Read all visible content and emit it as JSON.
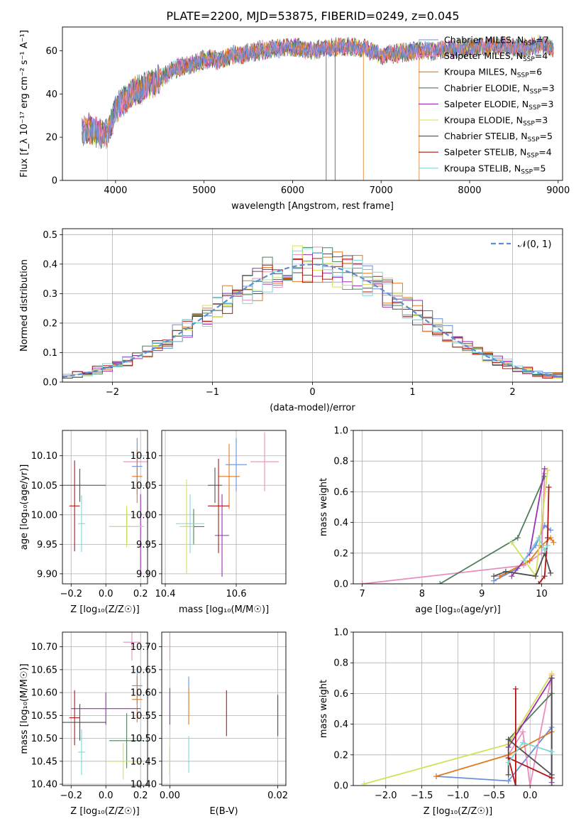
{
  "figure": {
    "title": "PLATE=2200, MJD=53875, FIBERID=0249, z=0.045"
  },
  "colors": {
    "Chabrier MILES": "#6a8fd8",
    "Salpeter MILES": "#e88fc0",
    "Kroupa MILES": "#e07a1f",
    "Chabrier ELODIE": "#4f7f5a",
    "Salpeter ELODIE": "#9b2fb5",
    "Kroupa ELODIE": "#d4e05a",
    "Chabrier STELIB": "#505050",
    "Salpeter STELIB": "#b01515",
    "Kroupa STELIB": "#7dd8d8",
    "normal": "#5b8fd6",
    "grid": "#b0b0b0"
  },
  "chart_data": [
    {
      "id": "spectrum",
      "type": "line",
      "xlabel": "wavelength [Angstrom, rest frame]",
      "ylabel": "Flux [f_λ 10⁻¹⁷ erg cm⁻² s⁻¹ A⁻¹]",
      "xlim": [
        3400,
        9050
      ],
      "ylim": [
        0,
        71
      ],
      "xticks": [
        4000,
        5000,
        6000,
        7000,
        8000,
        9000
      ],
      "yticks": [
        0,
        20,
        40,
        60
      ],
      "grid": false,
      "legend_position": "top-right",
      "continuum": {
        "x": [
          3620,
          3700,
          3800,
          3900,
          3950,
          4000,
          4100,
          4200,
          4300,
          4400,
          4500,
          4600,
          4700,
          4800,
          4900,
          5000,
          5100,
          5200,
          5300,
          5400,
          5500,
          5600,
          5800,
          6000,
          6200,
          6400,
          6600,
          6800,
          7000,
          7200,
          7400,
          7600,
          7800,
          8000,
          8200,
          8400,
          8600,
          8800,
          8950
        ],
        "y": [
          22,
          24,
          22,
          21,
          26,
          33,
          37,
          41,
          42,
          45,
          47,
          50,
          52,
          53,
          54,
          56,
          56,
          55,
          58,
          58,
          59,
          60,
          61,
          62,
          60,
          61,
          62,
          61,
          58,
          59,
          60,
          60,
          61,
          61,
          62,
          62,
          61,
          63,
          61
        ]
      },
      "noise_amplitude": 4,
      "drop_lines": [
        3910,
        6380,
        6480,
        6800,
        7430
      ],
      "series": [
        {
          "name": "Chabrier MILES",
          "n_ssp": "7"
        },
        {
          "name": "Salpeter MILES",
          "n_ssp": "4"
        },
        {
          "name": "Kroupa MILES",
          "n_ssp": "6"
        },
        {
          "name": "Chabrier ELODIE",
          "n_ssp": "3"
        },
        {
          "name": "Salpeter ELODIE",
          "n_ssp": "3"
        },
        {
          "name": "Kroupa ELODIE",
          "n_ssp": "3"
        },
        {
          "name": "Chabrier STELIB",
          "n_ssp": "5"
        },
        {
          "name": "Salpeter STELIB",
          "n_ssp": "4"
        },
        {
          "name": "Kroupa STELIB",
          "n_ssp": "5"
        }
      ]
    },
    {
      "id": "residuals",
      "type": "step-histogram",
      "xlabel": "(data-model)/error",
      "ylabel": "Normed distribution",
      "xlim": [
        -2.5,
        2.5
      ],
      "ylim": [
        0,
        0.52
      ],
      "xticks": [
        -2,
        -1,
        0,
        1,
        2
      ],
      "yticks": [
        0.0,
        0.1,
        0.2,
        0.3,
        0.4,
        0.5
      ],
      "grid": true,
      "legend": "𝒩(0, 1)",
      "legend_position": "top-right",
      "bin_edges": [
        -2.5,
        -2.4,
        -2.3,
        -2.2,
        -2.1,
        -2.0,
        -1.9,
        -1.8,
        -1.7,
        -1.6,
        -1.5,
        -1.4,
        -1.3,
        -1.2,
        -1.1,
        -1.0,
        -0.9,
        -0.8,
        -0.7,
        -0.6,
        -0.5,
        -0.4,
        -0.3,
        -0.2,
        -0.1,
        0.0,
        0.1,
        0.2,
        0.3,
        0.4,
        0.5,
        0.6,
        0.7,
        0.8,
        0.9,
        1.0,
        1.1,
        1.2,
        1.3,
        1.4,
        1.5,
        1.6,
        1.7,
        1.8,
        1.9,
        2.0,
        2.1,
        2.2,
        2.3,
        2.4,
        2.5
      ],
      "normal_pdf": {
        "mean": 0,
        "sigma": 1
      }
    },
    {
      "id": "age-vs-Z",
      "type": "errorbar",
      "xlabel": "Z [log₁₀(Z/Z☉)]",
      "ylabel": "age  [log₁₀(age/yr)]",
      "xlim": [
        -0.25,
        0.24
      ],
      "ylim": [
        9.883,
        10.143
      ],
      "xticks": [
        -0.2,
        0.0,
        0.2
      ],
      "yticks": [
        9.9,
        9.95,
        10.0,
        10.05,
        10.1
      ],
      "grid": true,
      "points": [
        {
          "series": "Chabrier MILES",
          "x": 0.18,
          "y": 10.082,
          "xerr": 0.03,
          "yerr": 0.048
        },
        {
          "series": "Salpeter MILES",
          "x": 0.17,
          "y": 10.09,
          "xerr": 0.07,
          "yerr": 0.0
        },
        {
          "series": "Kroupa MILES",
          "x": 0.18,
          "y": 10.065,
          "xerr": 0.03,
          "yerr": 0.045
        },
        {
          "series": "Chabrier ELODIE",
          "x": 0.12,
          "y": 9.98,
          "xerr": 0.1,
          "yerr": 0.028
        },
        {
          "series": "Salpeter ELODIE",
          "x": 0.2,
          "y": 9.965,
          "xerr": 0.0,
          "yerr": 0.07
        },
        {
          "series": "Kroupa ELODIE",
          "x": 0.12,
          "y": 9.98,
          "xerr": 0.1,
          "yerr": 0.035
        },
        {
          "series": "Chabrier STELIB",
          "x": -0.15,
          "y": 10.05,
          "xerr": 0.15,
          "yerr": 0.028
        },
        {
          "series": "Salpeter STELIB",
          "x": -0.18,
          "y": 10.015,
          "xerr": 0.03,
          "yerr": 0.077
        },
        {
          "series": "Kroupa STELIB",
          "x": -0.14,
          "y": 9.985,
          "xerr": 0.02,
          "yerr": 0.048
        }
      ]
    },
    {
      "id": "age-vs-mass",
      "type": "errorbar",
      "xlabel": "mass [log₁₀(M/M☉)]",
      "ylabel": "",
      "xlim": [
        10.39,
        10.74
      ],
      "ylim": [
        9.883,
        10.143
      ],
      "xticks": [
        10.4,
        10.6
      ],
      "yticks": [
        9.9,
        9.95,
        10.0,
        10.05,
        10.1
      ],
      "grid": true,
      "points": [
        {
          "series": "Chabrier MILES",
          "x": 10.6,
          "y": 10.085,
          "xerr": 0.03,
          "yerr": 0.045
        },
        {
          "series": "Salpeter MILES",
          "x": 10.68,
          "y": 10.09,
          "xerr": 0.04,
          "yerr": 0.05
        },
        {
          "series": "Kroupa MILES",
          "x": 10.58,
          "y": 10.065,
          "xerr": 0.03,
          "yerr": 0.055
        },
        {
          "series": "Chabrier ELODIE",
          "x": 10.48,
          "y": 9.98,
          "xerr": 0.03,
          "yerr": 0.03
        },
        {
          "series": "Salpeter ELODIE",
          "x": 10.56,
          "y": 9.965,
          "xerr": 0.02,
          "yerr": 0.07
        },
        {
          "series": "Kroupa ELODIE",
          "x": 10.46,
          "y": 9.98,
          "xerr": 0.02,
          "yerr": 0.08
        },
        {
          "series": "Chabrier STELIB",
          "x": 10.54,
          "y": 10.05,
          "xerr": 0.02,
          "yerr": 0.03
        },
        {
          "series": "Salpeter STELIB",
          "x": 10.55,
          "y": 10.015,
          "xerr": 0.03,
          "yerr": 0.08
        },
        {
          "series": "Kroupa STELIB",
          "x": 10.47,
          "y": 9.985,
          "xerr": 0.04,
          "yerr": 0.05
        }
      ]
    },
    {
      "id": "weight-vs-age",
      "type": "line",
      "xlabel": "age  [log₁₀(age/yr)]",
      "ylabel": "mass weight",
      "xlim": [
        6.85,
        10.35
      ],
      "ylim": [
        0,
        1
      ],
      "xticks": [
        7,
        8,
        9,
        10
      ],
      "yticks": [
        0.0,
        0.2,
        0.4,
        0.6,
        0.8,
        1.0
      ],
      "grid": true,
      "series": [
        {
          "name": "Chabrier MILES",
          "x": [
            9.2,
            9.6,
            9.9,
            10.05,
            10.15
          ],
          "y": [
            0.02,
            0.1,
            0.25,
            0.38,
            0.35
          ]
        },
        {
          "name": "Salpeter MILES",
          "x": [
            7.0,
            9.7,
            10.0,
            10.05
          ],
          "y": [
            0.0,
            0.12,
            0.2,
            0.72
          ]
        },
        {
          "name": "Kroupa MILES",
          "x": [
            9.3,
            9.8,
            10.0,
            10.15,
            10.2
          ],
          "y": [
            0.05,
            0.15,
            0.25,
            0.3,
            0.27
          ]
        },
        {
          "name": "Chabrier ELODIE",
          "x": [
            8.3,
            9.6,
            10.05
          ],
          "y": [
            0.0,
            0.3,
            0.7
          ]
        },
        {
          "name": "Salpeter ELODIE",
          "x": [
            9.5,
            9.8,
            10.05
          ],
          "y": [
            0.05,
            0.2,
            0.75
          ]
        },
        {
          "name": "Kroupa ELODIE",
          "x": [
            9.5,
            9.9,
            10.1
          ],
          "y": [
            0.27,
            0.05,
            0.74
          ]
        },
        {
          "name": "Chabrier STELIB",
          "x": [
            9.2,
            9.4,
            9.9,
            10.05,
            10.15
          ],
          "y": [
            0.05,
            0.08,
            0.05,
            0.2,
            0.07
          ]
        },
        {
          "name": "Salpeter STELIB",
          "x": [
            9.95,
            10.05,
            10.1,
            10.12
          ],
          "y": [
            0.0,
            0.05,
            0.3,
            0.63
          ]
        },
        {
          "name": "Kroupa STELIB",
          "x": [
            9.7,
            9.95,
            10.05,
            10.1
          ],
          "y": [
            0.15,
            0.3,
            0.22,
            0.25
          ]
        }
      ]
    },
    {
      "id": "mass-vs-Z",
      "type": "errorbar",
      "xlabel": "Z [log₁₀(Z/Z☉)]",
      "ylabel": "mass [log₁₀(M/M☉)]",
      "xlim": [
        -0.25,
        0.24
      ],
      "ylim": [
        10.397,
        10.732
      ],
      "xticks": [
        -0.2,
        0.0,
        0.2
      ],
      "yticks": [
        10.4,
        10.45,
        10.5,
        10.55,
        10.6,
        10.65,
        10.7
      ],
      "grid": true,
      "points": [
        {
          "series": "Chabrier MILES",
          "x": 0.18,
          "y": 10.615,
          "xerr": 0.03,
          "yerr": 0.04
        },
        {
          "series": "Salpeter MILES",
          "x": 0.15,
          "y": 10.71,
          "xerr": 0.05,
          "yerr": 0.04
        },
        {
          "series": "Kroupa MILES",
          "x": 0.18,
          "y": 10.585,
          "xerr": 0.03,
          "yerr": 0.05
        },
        {
          "series": "Chabrier ELODIE",
          "x": 0.12,
          "y": 10.495,
          "xerr": 0.1,
          "yerr": 0.06
        },
        {
          "series": "Salpeter ELODIE",
          "x": 0.0,
          "y": 10.565,
          "xerr": 0.2,
          "yerr": 0.035
        },
        {
          "series": "Kroupa ELODIE",
          "x": 0.1,
          "y": 10.45,
          "xerr": 0.1,
          "yerr": 0.04
        },
        {
          "series": "Chabrier STELIB",
          "x": -0.15,
          "y": 10.535,
          "xerr": 0.15,
          "yerr": 0.04
        },
        {
          "series": "Salpeter STELIB",
          "x": -0.18,
          "y": 10.545,
          "xerr": 0.03,
          "yerr": 0.06
        },
        {
          "series": "Kroupa STELIB",
          "x": -0.14,
          "y": 10.47,
          "xerr": 0.02,
          "yerr": 0.05
        }
      ]
    },
    {
      "id": "mass-vs-ebv",
      "type": "errorbar",
      "xlabel": "E(B-V)",
      "ylabel": "",
      "xlim": [
        -0.0015,
        0.0215
      ],
      "ylim": [
        10.397,
        10.732
      ],
      "xticks": [
        0.0,
        0.02
      ],
      "yticks": [
        10.4,
        10.45,
        10.5,
        10.55,
        10.6,
        10.65,
        10.7
      ],
      "grid": true,
      "points": [
        {
          "series": "Chabrier MILES",
          "x": 0.0035,
          "y": 10.6,
          "xerr": 0,
          "yerr": 0.035
        },
        {
          "series": "Salpeter MILES",
          "x": 0.0,
          "y": 10.7,
          "xerr": 0,
          "yerr": 0.03
        },
        {
          "series": "Kroupa MILES",
          "x": 0.0035,
          "y": 10.57,
          "xerr": 0,
          "yerr": 0.04
        },
        {
          "series": "Chabrier ELODIE",
          "x": 0.0,
          "y": 10.45,
          "xerr": 0,
          "yerr": 0.03
        },
        {
          "series": "Salpeter ELODIE",
          "x": 0.0,
          "y": 10.57,
          "xerr": 0,
          "yerr": 0.04
        },
        {
          "series": "Kroupa ELODIE",
          "x": 0.0,
          "y": 10.46,
          "xerr": 0,
          "yerr": 0.04
        },
        {
          "series": "Chabrier STELIB",
          "x": 0.02,
          "y": 10.55,
          "xerr": 0,
          "yerr": 0.045
        },
        {
          "series": "Salpeter STELIB",
          "x": 0.0105,
          "y": 10.555,
          "xerr": 0,
          "yerr": 0.05
        },
        {
          "series": "Kroupa STELIB",
          "x": 0.0035,
          "y": 10.465,
          "xerr": 0,
          "yerr": 0.04
        }
      ]
    },
    {
      "id": "weight-vs-Z",
      "type": "line",
      "xlabel": "Z [log₁₀(Z/Z☉)]",
      "ylabel": "mass weight",
      "xlim": [
        -2.45,
        0.45
      ],
      "ylim": [
        0,
        1
      ],
      "xticks": [
        -2.0,
        -1.5,
        -1.0,
        -0.5,
        0.0
      ],
      "yticks": [
        0.0,
        0.2,
        0.4,
        0.6,
        0.8,
        1.0
      ],
      "grid": true,
      "series": [
        {
          "name": "Chabrier MILES",
          "x": [
            -1.3,
            -0.3,
            0.3
          ],
          "y": [
            0.06,
            0.03,
            0.38
          ]
        },
        {
          "name": "Salpeter MILES",
          "x": [
            -0.3,
            -0.1,
            0.0,
            0.3
          ],
          "y": [
            0.2,
            0.35,
            0.0,
            0.72
          ]
        },
        {
          "name": "Kroupa MILES",
          "x": [
            -1.3,
            -0.3,
            0.3
          ],
          "y": [
            0.06,
            0.2,
            0.35
          ]
        },
        {
          "name": "Chabrier ELODIE",
          "x": [
            -0.3,
            0.3,
            0.3
          ],
          "y": [
            0.3,
            0.6,
            0.0
          ]
        },
        {
          "name": "Salpeter ELODIE",
          "x": [
            -0.3,
            0.3,
            0.3
          ],
          "y": [
            0.25,
            0.7,
            0.02
          ]
        },
        {
          "name": "Kroupa ELODIE",
          "x": [
            -2.3,
            -0.3,
            0.3
          ],
          "y": [
            0.01,
            0.27,
            0.73
          ]
        },
        {
          "name": "Chabrier STELIB",
          "x": [
            -0.3,
            -0.3,
            0.3,
            0.3
          ],
          "y": [
            0.07,
            0.3,
            0.07,
            0.7
          ]
        },
        {
          "name": "Salpeter STELIB",
          "x": [
            -0.2,
            -0.2,
            -0.3,
            0.3
          ],
          "y": [
            0.63,
            0.0,
            0.18,
            0.05
          ]
        },
        {
          "name": "Kroupa STELIB",
          "x": [
            -0.3,
            -0.1,
            0.3
          ],
          "y": [
            0.15,
            0.28,
            0.22
          ]
        }
      ]
    }
  ]
}
